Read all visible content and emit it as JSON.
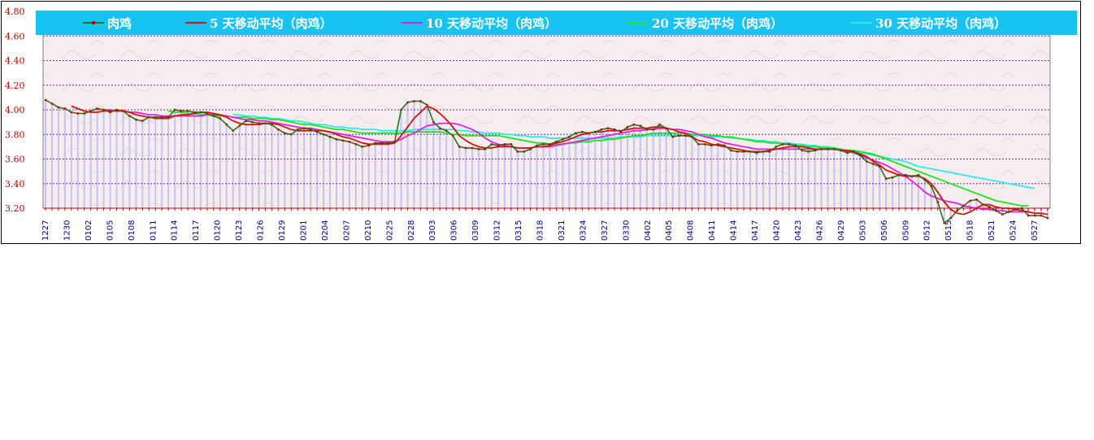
{
  "colors": {
    "legend_bg": "#19c3f0",
    "plot_bg": "#f6eeee",
    "grid": "#6b2bbf",
    "bars": "#c8c2f4",
    "axis_text_y": "#c00000",
    "axis_text_x": "#000080"
  },
  "chart_data": {
    "type": "line",
    "ylim": [
      3.2,
      4.8
    ],
    "yticks": [
      "3.20",
      "3.40",
      "3.60",
      "3.80",
      "4.00",
      "4.20",
      "4.40",
      "4.60",
      "4.80"
    ],
    "xtick_labels": [
      "1227",
      "1230",
      "0102",
      "0105",
      "0108",
      "0111",
      "0114",
      "0117",
      "0120",
      "0123",
      "0126",
      "0129",
      "0201",
      "0204",
      "0207",
      "0210",
      "0225",
      "0228",
      "0303",
      "0306",
      "0309",
      "0312",
      "0315",
      "0318",
      "0321",
      "0324",
      "0327",
      "0330",
      "0402",
      "0405",
      "0408",
      "0411",
      "0414",
      "0417",
      "0420",
      "0423",
      "0426",
      "0429",
      "0503",
      "0506",
      "0509",
      "0512",
      "0515",
      "0518",
      "0521",
      "0524",
      "0527"
    ],
    "legend_position": "top",
    "series": [
      {
        "name": "肉鸡",
        "color": "#1a7a1a",
        "marker_color": "#cc0000",
        "values": [
          4.08,
          4.05,
          4.02,
          4.01,
          3.98,
          3.97,
          3.97,
          3.99,
          4.01,
          4.0,
          3.98,
          4.0,
          3.99,
          3.95,
          3.92,
          3.91,
          3.94,
          3.94,
          3.94,
          3.94,
          4.0,
          3.99,
          3.99,
          3.98,
          3.98,
          3.97,
          3.95,
          3.93,
          3.88,
          3.83,
          3.87,
          3.91,
          3.9,
          3.89,
          3.89,
          3.88,
          3.84,
          3.81,
          3.8,
          3.84,
          3.85,
          3.84,
          3.82,
          3.8,
          3.78,
          3.76,
          3.75,
          3.74,
          3.72,
          3.7,
          3.71,
          3.73,
          3.73,
          3.73,
          3.74,
          4.0,
          4.06,
          4.07,
          4.07,
          4.04,
          3.9,
          3.85,
          3.83,
          3.79,
          3.7,
          3.69,
          3.69,
          3.68,
          3.68,
          3.72,
          3.71,
          3.72,
          3.72,
          3.66,
          3.66,
          3.68,
          3.71,
          3.72,
          3.72,
          3.74,
          3.76,
          3.78,
          3.81,
          3.82,
          3.81,
          3.82,
          3.84,
          3.85,
          3.84,
          3.82,
          3.86,
          3.88,
          3.87,
          3.84,
          3.84,
          3.88,
          3.85,
          3.78,
          3.79,
          3.79,
          3.78,
          3.72,
          3.72,
          3.71,
          3.72,
          3.71,
          3.67,
          3.66,
          3.66,
          3.66,
          3.65,
          3.66,
          3.66,
          3.7,
          3.72,
          3.72,
          3.71,
          3.67,
          3.66,
          3.67,
          3.68,
          3.68,
          3.68,
          3.67,
          3.65,
          3.66,
          3.63,
          3.58,
          3.56,
          3.54,
          3.44,
          3.45,
          3.47,
          3.47,
          3.46,
          3.47,
          3.43,
          3.38,
          3.25,
          3.08,
          3.12,
          3.18,
          3.22,
          3.26,
          3.27,
          3.23,
          3.21,
          3.18,
          3.15,
          3.17,
          3.19,
          3.2,
          3.14,
          3.14,
          3.14,
          3.12
        ]
      },
      {
        "name": "5 天移动平均（肉鸡）",
        "color": "#d81010",
        "values": [
          null,
          null,
          null,
          null,
          4.03,
          4.01,
          3.99,
          3.98,
          3.98,
          3.99,
          3.99,
          3.99,
          3.99,
          3.98,
          3.96,
          3.95,
          3.94,
          3.93,
          3.93,
          3.93,
          3.95,
          3.96,
          3.96,
          3.97,
          3.98,
          3.98,
          3.97,
          3.96,
          3.94,
          3.91,
          3.89,
          3.88,
          3.88,
          3.88,
          3.89,
          3.89,
          3.88,
          3.86,
          3.84,
          3.83,
          3.83,
          3.83,
          3.83,
          3.83,
          3.82,
          3.8,
          3.78,
          3.77,
          3.75,
          3.73,
          3.72,
          3.72,
          3.72,
          3.72,
          3.73,
          3.79,
          3.86,
          3.93,
          3.98,
          4.03,
          4.01,
          3.97,
          3.92,
          3.86,
          3.79,
          3.75,
          3.72,
          3.7,
          3.69,
          3.69,
          3.7,
          3.7,
          3.7,
          3.69,
          3.69,
          3.69,
          3.7,
          3.7,
          3.71,
          3.73,
          3.74,
          3.76,
          3.78,
          3.8,
          3.81,
          3.82,
          3.82,
          3.83,
          3.83,
          3.83,
          3.84,
          3.85,
          3.85,
          3.85,
          3.86,
          3.86,
          3.85,
          3.84,
          3.82,
          3.81,
          3.78,
          3.75,
          3.74,
          3.72,
          3.71,
          3.7,
          3.69,
          3.68,
          3.67,
          3.66,
          3.66,
          3.66,
          3.67,
          3.68,
          3.69,
          3.7,
          3.7,
          3.7,
          3.69,
          3.68,
          3.68,
          3.68,
          3.68,
          3.67,
          3.67,
          3.66,
          3.64,
          3.62,
          3.58,
          3.55,
          3.51,
          3.49,
          3.47,
          3.46,
          3.46,
          3.46,
          3.44,
          3.4,
          3.33,
          3.25,
          3.19,
          3.16,
          3.15,
          3.17,
          3.2,
          3.23,
          3.23,
          3.21,
          3.2,
          3.2,
          3.19,
          3.18,
          3.17,
          3.16,
          3.16,
          3.15
        ]
      },
      {
        "name": "10 天移动平均（肉鸡）",
        "color": "#e020e0",
        "values": [
          null,
          null,
          null,
          null,
          null,
          null,
          null,
          null,
          null,
          4.0,
          4.0,
          3.99,
          3.99,
          3.98,
          3.98,
          3.97,
          3.96,
          3.96,
          3.95,
          3.95,
          3.95,
          3.95,
          3.95,
          3.95,
          3.95,
          3.96,
          3.96,
          3.96,
          3.95,
          3.94,
          3.93,
          3.92,
          3.92,
          3.91,
          3.91,
          3.9,
          3.89,
          3.88,
          3.87,
          3.86,
          3.85,
          3.85,
          3.84,
          3.83,
          3.82,
          3.81,
          3.8,
          3.79,
          3.78,
          3.77,
          3.76,
          3.75,
          3.74,
          3.74,
          3.74,
          3.76,
          3.79,
          3.81,
          3.84,
          3.87,
          3.88,
          3.89,
          3.89,
          3.89,
          3.88,
          3.86,
          3.84,
          3.81,
          3.77,
          3.74,
          3.72,
          3.71,
          3.7,
          3.69,
          3.69,
          3.69,
          3.7,
          3.7,
          3.7,
          3.71,
          3.72,
          3.73,
          3.74,
          3.75,
          3.76,
          3.77,
          3.78,
          3.79,
          3.8,
          3.81,
          3.82,
          3.83,
          3.83,
          3.84,
          3.84,
          3.85,
          3.85,
          3.84,
          3.84,
          3.83,
          3.82,
          3.8,
          3.78,
          3.77,
          3.75,
          3.73,
          3.72,
          3.71,
          3.7,
          3.69,
          3.68,
          3.68,
          3.68,
          3.68,
          3.68,
          3.68,
          3.68,
          3.68,
          3.68,
          3.68,
          3.68,
          3.68,
          3.68,
          3.67,
          3.66,
          3.65,
          3.63,
          3.61,
          3.59,
          3.57,
          3.55,
          3.52,
          3.49,
          3.46,
          3.42,
          3.38,
          3.33,
          3.3,
          3.28,
          3.26,
          3.25,
          3.24,
          3.22,
          3.21,
          3.2,
          3.19,
          3.19,
          3.18,
          3.18,
          3.17,
          3.17,
          3.17,
          3.17
        ]
      },
      {
        "name": "20 天移动平均（肉鸡）",
        "color": "#22e022",
        "values": [
          null,
          null,
          null,
          null,
          null,
          null,
          null,
          null,
          null,
          null,
          null,
          null,
          null,
          null,
          null,
          null,
          null,
          null,
          null,
          3.99,
          3.98,
          3.98,
          3.97,
          3.97,
          3.96,
          3.96,
          3.95,
          3.95,
          3.95,
          3.94,
          3.94,
          3.94,
          3.93,
          3.93,
          3.93,
          3.92,
          3.92,
          3.91,
          3.9,
          3.89,
          3.88,
          3.88,
          3.87,
          3.86,
          3.85,
          3.84,
          3.84,
          3.83,
          3.82,
          3.81,
          3.81,
          3.81,
          3.81,
          3.81,
          3.81,
          3.81,
          3.82,
          3.82,
          3.82,
          3.82,
          3.82,
          3.82,
          3.81,
          3.8,
          3.8,
          3.79,
          3.79,
          3.79,
          3.79,
          3.79,
          3.79,
          3.78,
          3.77,
          3.76,
          3.75,
          3.74,
          3.73,
          3.73,
          3.72,
          3.72,
          3.72,
          3.73,
          3.73,
          3.74,
          3.74,
          3.75,
          3.75,
          3.76,
          3.76,
          3.77,
          3.78,
          3.79,
          3.79,
          3.8,
          3.81,
          3.81,
          3.81,
          3.81,
          3.81,
          3.81,
          3.8,
          3.8,
          3.8,
          3.79,
          3.79,
          3.78,
          3.78,
          3.77,
          3.76,
          3.75,
          3.74,
          3.74,
          3.73,
          3.73,
          3.72,
          3.72,
          3.71,
          3.71,
          3.7,
          3.7,
          3.69,
          3.69,
          3.69,
          3.68,
          3.67,
          3.67,
          3.66,
          3.65,
          3.64,
          3.62,
          3.6,
          3.58,
          3.56,
          3.54,
          3.52,
          3.5,
          3.48,
          3.46,
          3.44,
          3.42,
          3.4,
          3.38,
          3.36,
          3.34,
          3.32,
          3.3,
          3.28,
          3.26,
          3.25,
          3.24,
          3.23,
          3.22,
          3.22
        ]
      },
      {
        "name": "30 天移动平均（肉鸡）",
        "color": "#30e8e8",
        "values": [
          null,
          null,
          null,
          null,
          null,
          null,
          null,
          null,
          null,
          null,
          null,
          null,
          null,
          null,
          null,
          null,
          null,
          null,
          null,
          null,
          null,
          null,
          null,
          null,
          null,
          null,
          null,
          null,
          null,
          3.96,
          3.96,
          3.95,
          3.95,
          3.94,
          3.94,
          3.93,
          3.93,
          3.92,
          3.91,
          3.91,
          3.9,
          3.89,
          3.88,
          3.88,
          3.87,
          3.86,
          3.86,
          3.85,
          3.85,
          3.84,
          3.84,
          3.84,
          3.83,
          3.83,
          3.83,
          3.83,
          3.83,
          3.84,
          3.84,
          3.84,
          3.84,
          3.84,
          3.84,
          3.84,
          3.83,
          3.83,
          3.82,
          3.82,
          3.81,
          3.81,
          3.81,
          3.8,
          3.8,
          3.79,
          3.79,
          3.78,
          3.78,
          3.78,
          3.77,
          3.77,
          3.77,
          3.77,
          3.77,
          3.77,
          3.77,
          3.77,
          3.77,
          3.77,
          3.77,
          3.78,
          3.78,
          3.78,
          3.78,
          3.79,
          3.79,
          3.79,
          3.79,
          3.79,
          3.79,
          3.79,
          3.79,
          3.79,
          3.79,
          3.78,
          3.78,
          3.78,
          3.77,
          3.77,
          3.76,
          3.76,
          3.75,
          3.75,
          3.74,
          3.74,
          3.73,
          3.73,
          3.72,
          3.72,
          3.71,
          3.71,
          3.7,
          3.7,
          3.69,
          3.68,
          3.67,
          3.66,
          3.65,
          3.64,
          3.63,
          3.62,
          3.61,
          3.6,
          3.59,
          3.58,
          3.56,
          3.54,
          3.53,
          3.52,
          3.51,
          3.5,
          3.49,
          3.48,
          3.47,
          3.46,
          3.45,
          3.44,
          3.43,
          3.42,
          3.41,
          3.4,
          3.39,
          3.38,
          3.37,
          3.36
        ]
      }
    ]
  }
}
